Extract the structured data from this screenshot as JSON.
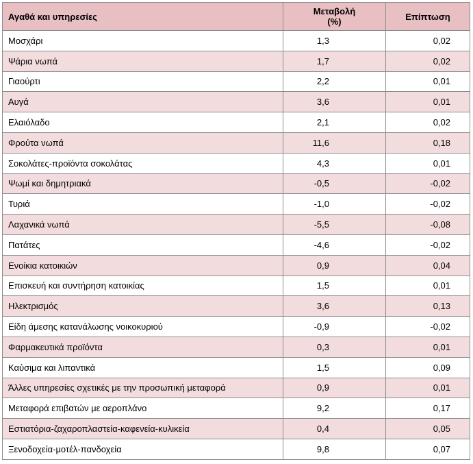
{
  "table": {
    "headers": {
      "name": "Αγαθά και υπηρεσίες",
      "change_line1": "Μεταβολή",
      "change_line2": "(%)",
      "impact": "Επίπτωση"
    },
    "rows": [
      {
        "name": "Μοσχάρι",
        "change": "1,3",
        "impact": "0,02"
      },
      {
        "name": "Ψάρια νωπά",
        "change": "1,7",
        "impact": "0,02"
      },
      {
        "name": "Γιαούρτι",
        "change": "2,2",
        "impact": "0,01"
      },
      {
        "name": "Αυγά",
        "change": "3,6",
        "impact": "0,01"
      },
      {
        "name": "Ελαιόλαδο",
        "change": "2,1",
        "impact": "0,02"
      },
      {
        "name": "Φρούτα νωπά",
        "change": "11,6",
        "impact": "0,18"
      },
      {
        "name": "Σοκολάτες-προϊόντα σοκολάτας",
        "change": "4,3",
        "impact": "0,01"
      },
      {
        "name": "Ψωμί και δημητριακά",
        "change": "-0,5",
        "impact": "-0,02"
      },
      {
        "name": "Τυριά",
        "change": "-1,0",
        "impact": "-0,02"
      },
      {
        "name": "Λαχανικά νωπά",
        "change": "-5,5",
        "impact": "-0,08"
      },
      {
        "name": "Πατάτες",
        "change": "-4,6",
        "impact": "-0,02"
      },
      {
        "name": "Ενοίκια κατοικιών",
        "change": "0,9",
        "impact": "0,04"
      },
      {
        "name": "Επισκευή και συντήρηση κατοικίας",
        "change": "1,5",
        "impact": "0,01"
      },
      {
        "name": "Ηλεκτρισμός",
        "change": "3,6",
        "impact": "0,13"
      },
      {
        "name": "Είδη άμεσης κατανάλωσης νοικοκυριού",
        "change": "-0,9",
        "impact": "-0,02"
      },
      {
        "name": "Φαρμακευτικά προϊόντα",
        "change": "0,3",
        "impact": "0,01"
      },
      {
        "name": "Καύσιμα και λιπαντικά",
        "change": "1,5",
        "impact": "0,09"
      },
      {
        "name": "Άλλες υπηρεσίες σχετικές με την προσωπική μεταφορά",
        "change": "0,9",
        "impact": "0,01"
      },
      {
        "name": "Μεταφορά επιβατών με αεροπλάνο",
        "change": "9,2",
        "impact": "0,17"
      },
      {
        "name": "Εστιατόρια-ζαχαροπλαστεία-καφενεία-κυλικεία",
        "change": "0,4",
        "impact": "0,05"
      },
      {
        "name": "Ξενοδοχεία-μοτέλ-πανδοχεία",
        "change": "9,8",
        "impact": "0,07"
      }
    ]
  }
}
